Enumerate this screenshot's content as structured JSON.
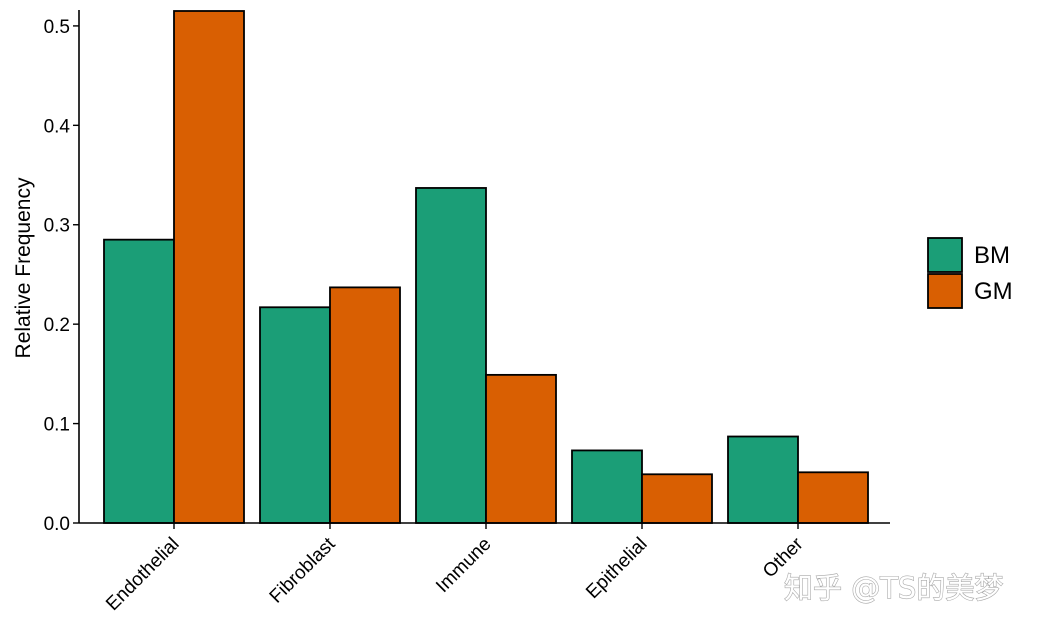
{
  "chart_data": {
    "type": "bar",
    "categories": [
      "Endothelial",
      "Fibroblast",
      "Immune",
      "Epithelial",
      "Other"
    ],
    "series": [
      {
        "name": "BM",
        "values": [
          0.285,
          0.217,
          0.337,
          0.073,
          0.087
        ],
        "color": "#1b9e77"
      },
      {
        "name": "GM",
        "values": [
          0.515,
          0.237,
          0.149,
          0.049,
          0.051
        ],
        "color": "#d95f02"
      }
    ],
    "title": "",
    "xlabel": "",
    "ylabel": "Relative Frequency",
    "ylim": [
      0,
      0.515
    ],
    "yticks": [
      0.0,
      0.1,
      0.2,
      0.3,
      0.4,
      0.5
    ],
    "ytick_labels": [
      "0.0",
      "0.1",
      "0.2",
      "0.3",
      "0.4",
      "0.5"
    ],
    "grid": false,
    "legend_position": "right"
  },
  "watermark": "知乎 @TS的美梦"
}
